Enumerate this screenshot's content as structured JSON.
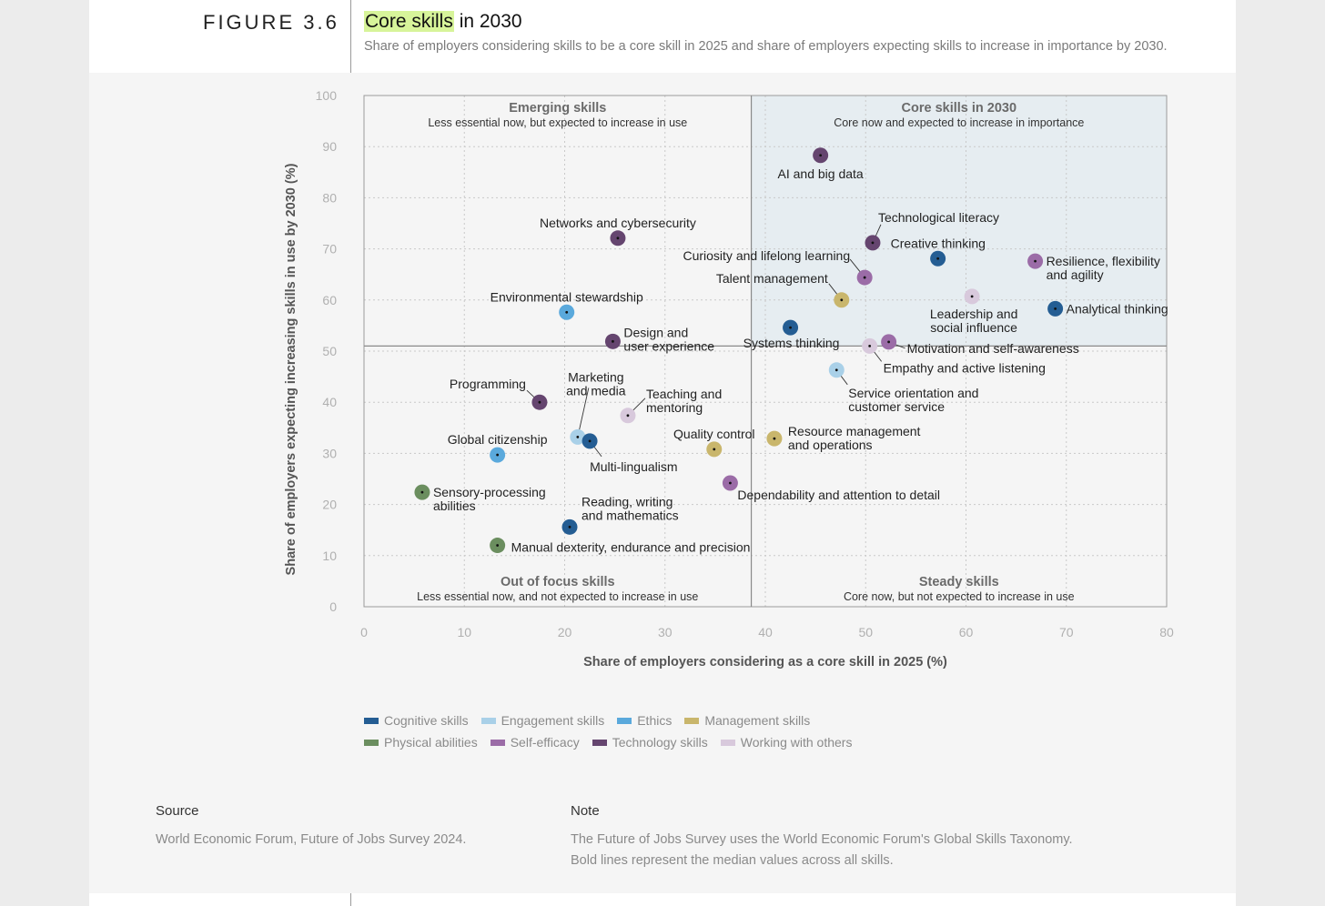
{
  "figure_label": "FIGURE 3.6",
  "title": {
    "highlight": "Core skills",
    "rest": " in 2030"
  },
  "subtitle": "Share of employers considering skills to be a core skill in 2025 and share of employers expecting skills to increase in importance by 2030.",
  "colors": {
    "Cognitive skills": "#245d93",
    "Engagement skills": "#a9d0e8",
    "Ethics": "#5aa9dc",
    "Management skills": "#c9b66c",
    "Physical abilities": "#6b8e5f",
    "Self-efficacy": "#9b6ca7",
    "Technology skills": "#65456f",
    "Working with others": "#d8c9dc",
    "quadrant_highlight": "#e6edf1",
    "highlight": "#d7f49a"
  },
  "chart_data": {
    "type": "scatter",
    "xlabel": "Share of employers considering as a core skill in 2025 (%)",
    "ylabel": "Share of employers expecting increasing skills in use by 2030 (%)",
    "xlim": [
      0,
      80
    ],
    "ylim": [
      0,
      100
    ],
    "xticks": [
      0,
      10,
      20,
      30,
      40,
      50,
      60,
      70,
      80
    ],
    "yticks": [
      0,
      10,
      20,
      30,
      40,
      50,
      60,
      70,
      80,
      90,
      100
    ],
    "grid": true,
    "median_x": 38.6,
    "median_y": 51,
    "quadrants": [
      {
        "title": "Emerging skills",
        "desc": "Less essential now, but expected to increase in use"
      },
      {
        "title": "Core skills in 2030",
        "desc": "Core now and expected to increase in importance"
      },
      {
        "title": "Out of focus skills",
        "desc": "Less essential now, and not expected to increase in use"
      },
      {
        "title": "Steady skills",
        "desc": "Core now, but not expected to increase in use"
      }
    ],
    "points": [
      {
        "label": "AI and big data",
        "x": 45.5,
        "y": 88.3,
        "category": "Technology skills"
      },
      {
        "label": "Technological literacy",
        "x": 50.7,
        "y": 71.2,
        "category": "Technology skills"
      },
      {
        "label": "Creative thinking",
        "x": 57.2,
        "y": 68.1,
        "category": "Cognitive skills"
      },
      {
        "label": "Resilience, flexibility and agility",
        "x": 66.9,
        "y": 67.6,
        "category": "Self-efficacy"
      },
      {
        "label": "Curiosity and lifelong learning",
        "x": 49.9,
        "y": 64.4,
        "category": "Self-efficacy"
      },
      {
        "label": "Talent management",
        "x": 47.6,
        "y": 60.0,
        "category": "Management skills"
      },
      {
        "label": "Leadership and social influence",
        "x": 60.6,
        "y": 60.7,
        "category": "Working with others"
      },
      {
        "label": "Analytical thinking",
        "x": 68.9,
        "y": 58.3,
        "category": "Cognitive skills"
      },
      {
        "label": "Systems thinking",
        "x": 42.5,
        "y": 54.6,
        "category": "Cognitive skills"
      },
      {
        "label": "Motivation and self-awareness",
        "x": 52.3,
        "y": 51.8,
        "category": "Self-efficacy"
      },
      {
        "label": "Empathy and active listening",
        "x": 50.4,
        "y": 51.0,
        "category": "Working with others"
      },
      {
        "label": "Networks and cybersecurity",
        "x": 25.3,
        "y": 72.1,
        "category": "Technology skills"
      },
      {
        "label": "Environmental stewardship",
        "x": 20.2,
        "y": 57.6,
        "category": "Ethics"
      },
      {
        "label": "Design and user experience",
        "x": 24.8,
        "y": 51.9,
        "category": "Technology skills"
      },
      {
        "label": "Service orientation and customer service",
        "x": 47.1,
        "y": 46.3,
        "category": "Engagement skills"
      },
      {
        "label": "Programming",
        "x": 17.5,
        "y": 40.0,
        "category": "Technology skills"
      },
      {
        "label": "Teaching and mentoring",
        "x": 26.3,
        "y": 37.4,
        "category": "Working with others"
      },
      {
        "label": "Marketing and media",
        "x": 21.3,
        "y": 33.2,
        "category": "Engagement skills"
      },
      {
        "label": "Multi-lingualism",
        "x": 22.5,
        "y": 32.4,
        "category": "Cognitive skills"
      },
      {
        "label": "Global citizenship",
        "x": 13.3,
        "y": 29.7,
        "category": "Ethics"
      },
      {
        "label": "Quality control",
        "x": 34.9,
        "y": 30.8,
        "category": "Management skills"
      },
      {
        "label": "Resource management and operations",
        "x": 40.9,
        "y": 32.9,
        "category": "Management skills"
      },
      {
        "label": "Dependability and attention to detail",
        "x": 36.5,
        "y": 24.2,
        "category": "Self-efficacy"
      },
      {
        "label": "Sensory-processing abilities",
        "x": 5.8,
        "y": 22.4,
        "category": "Physical abilities"
      },
      {
        "label": "Reading, writing and mathematics",
        "x": 20.5,
        "y": 15.6,
        "category": "Cognitive skills"
      },
      {
        "label": "Manual dexterity, endurance and precision",
        "x": 13.3,
        "y": 12.0,
        "category": "Physical abilities"
      }
    ],
    "legend": [
      "Cognitive skills",
      "Engagement skills",
      "Ethics",
      "Management skills",
      "Physical abilities",
      "Self-efficacy",
      "Technology skills",
      "Working with others"
    ]
  },
  "source": {
    "heading": "Source",
    "text": "World Economic Forum, Future of Jobs Survey 2024."
  },
  "note": {
    "heading": "Note",
    "line1": "The Future of Jobs Survey uses the World Economic Forum's Global Skills Taxonomy.",
    "line2": "Bold lines represent the median values across all skills."
  }
}
